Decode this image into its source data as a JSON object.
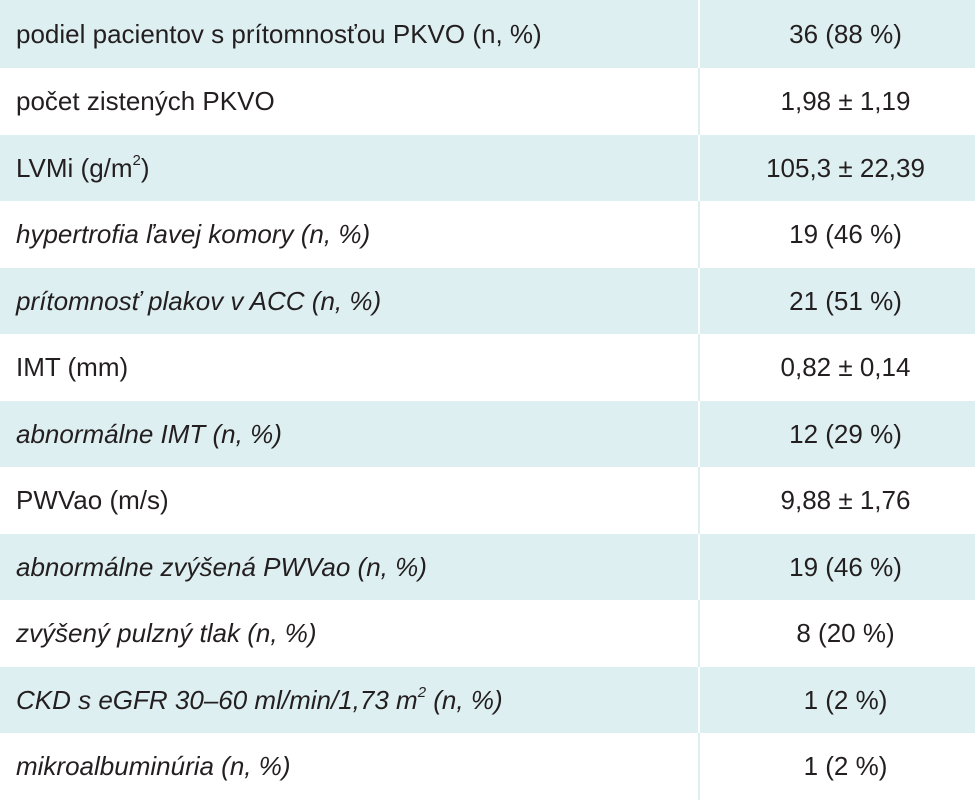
{
  "rows": [
    {
      "label": "podiel pacientov s prítomnosťou PKVO (n, %)",
      "value": "36 (88 %)"
    },
    {
      "label": "počet zistených PKVO",
      "value": "1,98 ± 1,19"
    },
    {
      "label_pre": "LVMi (g/m",
      "label_sup": "2",
      "label_post": ")",
      "value": "105,3 ± 22,39"
    },
    {
      "label": "hypertrofia ľavej komory (n, %)",
      "value": "19 (46 %)"
    },
    {
      "label": "prítomnosť plakov v ACC (n, %)",
      "value": "21 (51 %)"
    },
    {
      "label": "IMT (mm)",
      "value": "0,82 ± 0,14"
    },
    {
      "label": "abnormálne IMT (n, %)",
      "value": "12 (29 %)"
    },
    {
      "label": "PWVao (m/s)",
      "value": "9,88 ± 1,76"
    },
    {
      "label": "abnormálne zvýšená  PWVao (n, %)",
      "value": "19 (46 %)"
    },
    {
      "label": "zvýšený pulzný tlak (n, %)",
      "value": "8 (20 %)"
    },
    {
      "label_pre": "CKD s eGFR 30–60 ml/min/1,73 m",
      "label_sup": "2",
      "label_post": " (n, %)",
      "value": "1 (2 %)"
    },
    {
      "label": "mikroalbuminúria (n, %)",
      "value": "1 (2 %)"
    }
  ]
}
